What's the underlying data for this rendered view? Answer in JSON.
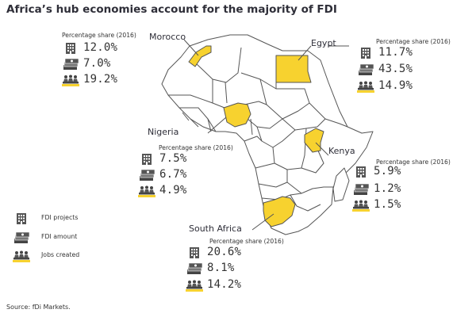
{
  "title": "Africa’s hub economies account for the majority of FDI",
  "source": "Source: fDi Markets.",
  "highlight_color": "#f7d22f",
  "legend": [
    {
      "icon": "building-icon",
      "label": "FDI projects"
    },
    {
      "icon": "money-icon",
      "label": "FDI amount"
    },
    {
      "icon": "workers-icon",
      "label": "Jobs created"
    }
  ],
  "countries": {
    "morocco": {
      "name": "Morocco",
      "share_label": "Percentage share (2016)",
      "fdi_projects": "12.0%",
      "fdi_amount": "7.0%",
      "jobs_created": "19.2%"
    },
    "egypt": {
      "name": "Egypt",
      "share_label": "Percentage share (2016)",
      "fdi_projects": "11.7%",
      "fdi_amount": "43.5%",
      "jobs_created": "14.9%"
    },
    "nigeria": {
      "name": "Nigeria",
      "share_label": "Percentage share (2016)",
      "fdi_projects": "7.5%",
      "fdi_amount": "6.7%",
      "jobs_created": "4.9%"
    },
    "kenya": {
      "name": "Kenya",
      "share_label": "Percentage share (2016)",
      "fdi_projects": "5.9%",
      "fdi_amount": "1.2%",
      "jobs_created": "1.5%"
    },
    "south_africa": {
      "name": "South Africa",
      "share_label": "Percentage share (2016)",
      "fdi_projects": "20.6%",
      "fdi_amount": "8.1%",
      "jobs_created": "14.2%"
    }
  }
}
